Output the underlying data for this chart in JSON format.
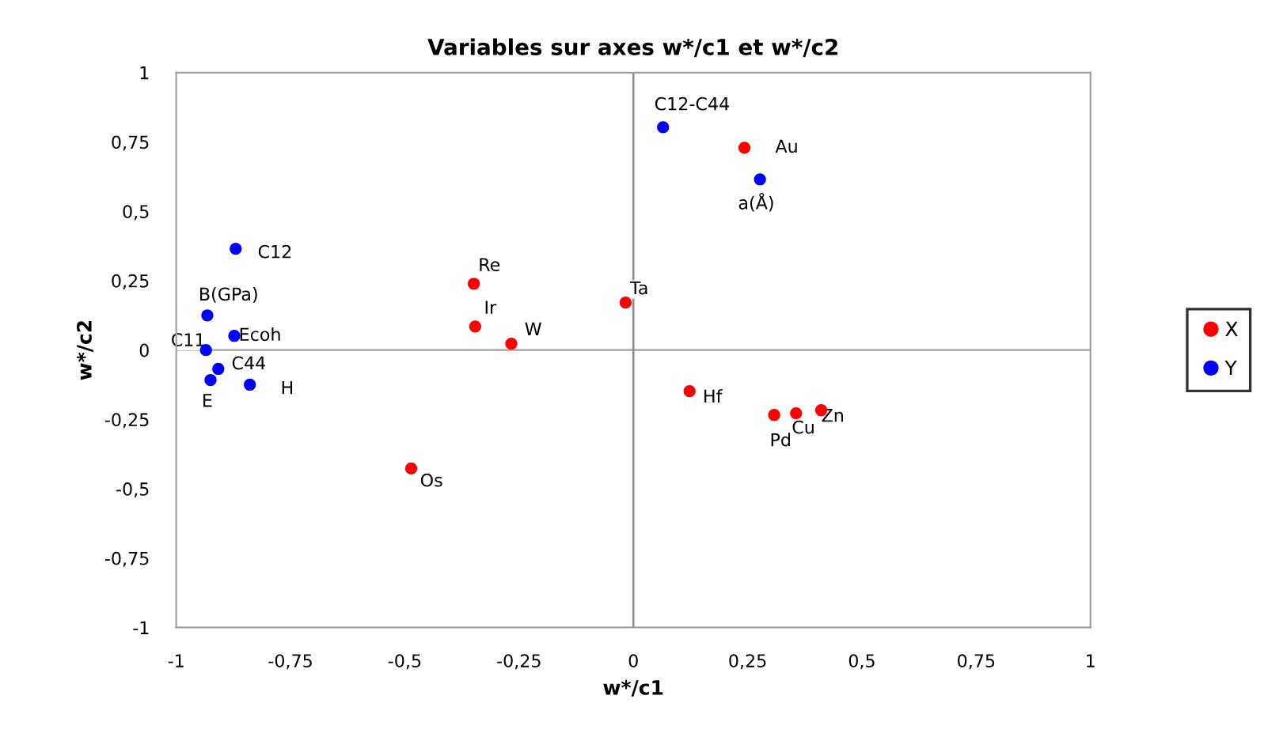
{
  "chart_data": {
    "type": "scatter",
    "title": "Variables sur axes w*/c1 et w*/c2",
    "xlabel": "w*/c1",
    "ylabel": "w*/c2",
    "xlim": [
      -1,
      1
    ],
    "ylim": [
      -1,
      1
    ],
    "xticks": [
      {
        "value": -1,
        "label": "-1"
      },
      {
        "value": -0.75,
        "label": "-0,75"
      },
      {
        "value": -0.5,
        "label": "-0,5"
      },
      {
        "value": -0.25,
        "label": "-0,25"
      },
      0,
      {
        "value": 0.25,
        "label": "0,25"
      },
      {
        "value": 0.5,
        "label": "0,5"
      },
      {
        "value": 0.75,
        "label": "0,75"
      },
      1
    ],
    "yticks": [
      {
        "value": -1,
        "label": "-1"
      },
      {
        "value": -0.75,
        "label": "-0,75"
      },
      {
        "value": -0.5,
        "label": "-0,5"
      },
      {
        "value": -0.25,
        "label": "-0,25"
      },
      0,
      {
        "value": 0.25,
        "label": "0,25"
      },
      {
        "value": 0.5,
        "label": "0,5"
      },
      {
        "value": 0.75,
        "label": "0,75"
      },
      1
    ],
    "grid": false,
    "legend": "right",
    "marker": "circle",
    "series": [
      {
        "name": "X",
        "color": "#ff0000",
        "x": [
          0.243,
          -0.349,
          -0.017,
          -0.346,
          -0.267,
          -0.486,
          0.123,
          0.308,
          0.356,
          0.411
        ],
        "values": [
          0.729,
          0.239,
          0.171,
          0.085,
          0.023,
          -0.427,
          -0.148,
          -0.234,
          -0.228,
          -0.217
        ]
      },
      {
        "name": "Y",
        "color": "#0000ff",
        "x": [
          0.065,
          0.277,
          -0.87,
          -0.932,
          -0.873,
          -0.935,
          -0.908,
          -0.925,
          -0.839
        ],
        "values": [
          0.803,
          0.615,
          0.365,
          0.125,
          0.051,
          0.0,
          -0.068,
          -0.108,
          -0.125
        ]
      }
    ],
    "annotations": [
      {
        "text": "Au",
        "x": 0.243,
        "y": 0.729
      },
      {
        "text": "Re",
        "x": -0.349,
        "y": 0.239
      },
      {
        "text": "Ta",
        "x": -0.017,
        "y": 0.171
      },
      {
        "text": "Ir",
        "x": -0.346,
        "y": 0.085
      },
      {
        "text": "W",
        "x": -0.267,
        "y": 0.023
      },
      {
        "text": "Os",
        "x": -0.486,
        "y": -0.427
      },
      {
        "text": "Hf",
        "x": 0.123,
        "y": -0.148
      },
      {
        "text": "Pd",
        "x": 0.308,
        "y": -0.234
      },
      {
        "text": "Cu",
        "x": 0.356,
        "y": -0.228
      },
      {
        "text": "Zn",
        "x": 0.411,
        "y": -0.217
      },
      {
        "text": "C12-C44",
        "x": 0.065,
        "y": 0.803
      },
      {
        "text": "a(Å)",
        "x": 0.277,
        "y": 0.615
      },
      {
        "text": "C12",
        "x": -0.87,
        "y": 0.365
      },
      {
        "text": "B(GPa)",
        "x": -0.932,
        "y": 0.125
      },
      {
        "text": "Ecoh",
        "x": -0.873,
        "y": 0.051
      },
      {
        "text": "C11",
        "x": -0.935,
        "y": 0.0
      },
      {
        "text": "C44",
        "x": -0.908,
        "y": -0.068
      },
      {
        "text": "E",
        "x": -0.925,
        "y": -0.108
      },
      {
        "text": "H",
        "x": -0.839,
        "y": -0.125
      }
    ]
  }
}
